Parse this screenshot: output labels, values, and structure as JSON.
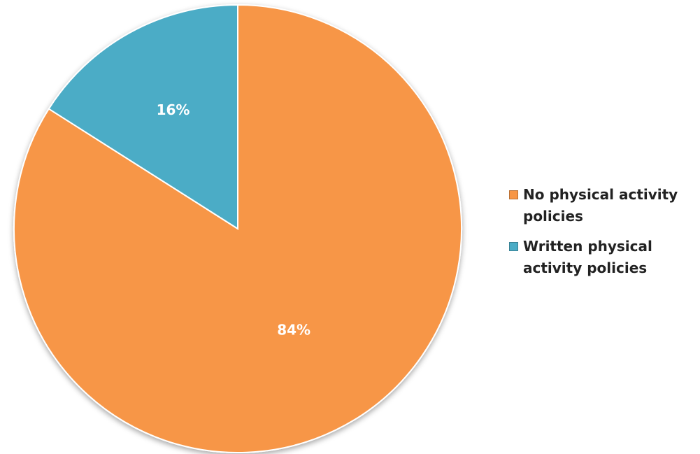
{
  "chart_data": {
    "type": "pie",
    "title": "",
    "legend_position": "right",
    "slices": [
      {
        "label": "No physical activity policies",
        "value": 84,
        "display": "84%",
        "color": "#F79646"
      },
      {
        "label": "Written physical activity policies",
        "value": 16,
        "display": "16%",
        "color": "#4BACC6"
      }
    ]
  }
}
